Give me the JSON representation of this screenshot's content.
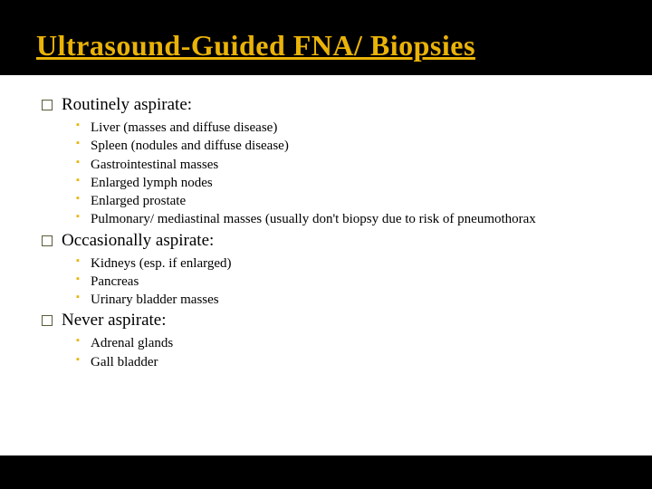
{
  "title": "Ultrasound-Guided FNA/ Biopsies",
  "sections": [
    {
      "heading": "Routinely aspirate:",
      "items": [
        "Liver (masses and diffuse disease)",
        "Spleen (nodules and diffuse disease)",
        "Gastrointestinal masses",
        "Enlarged lymph nodes",
        "Enlarged prostate",
        "Pulmonary/ mediastinal masses (usually don't biopsy due to risk of pneumothorax"
      ]
    },
    {
      "heading": "Occasionally aspirate:",
      "items": [
        "Kidneys (esp. if enlarged)",
        "Pancreas",
        "Urinary bladder masses"
      ]
    },
    {
      "heading": "Never aspirate:",
      "items": [
        "Adrenal glands",
        "Gall bladder"
      ]
    }
  ],
  "colors": {
    "background_top": "#000000",
    "background_body": "#ffffff",
    "title_color": "#eab308",
    "bullet_square_color": "#eab308",
    "box_border_color": "#5a5a3a",
    "text_color": "#000000"
  },
  "typography": {
    "title_fontsize": 32,
    "section_fontsize": 19,
    "item_fontsize": 15,
    "font_family": "Georgia, serif"
  }
}
